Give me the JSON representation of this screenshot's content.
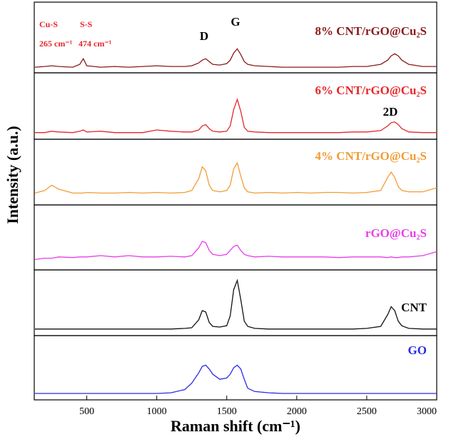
{
  "chart_data": {
    "type": "line",
    "xlabel": "Raman shift (cm⁻¹)",
    "ylabel": "Intensity (a.u.)",
    "xlim": [
      125,
      3000
    ],
    "xticks": [
      500,
      1000,
      1500,
      2000,
      2500,
      3000
    ],
    "ylim": [
      0,
      100
    ],
    "annotations": [
      "D",
      "G",
      "2D",
      "Cu-S",
      "S-S",
      "265 cm⁻¹",
      "474 cm⁻¹"
    ],
    "x": [
      130,
      200,
      250,
      300,
      400,
      450,
      475,
      500,
      600,
      700,
      800,
      900,
      1000,
      1100,
      1200,
      1250,
      1300,
      1325,
      1350,
      1375,
      1400,
      1450,
      1500,
      1525,
      1550,
      1575,
      1600,
      1625,
      1650,
      1700,
      1800,
      1900,
      2000,
      2100,
      2200,
      2300,
      2400,
      2500,
      2600,
      2650,
      2675,
      2700,
      2725,
      2750,
      2800,
      2900,
      3000
    ],
    "series": [
      {
        "name": "8% CNT/rGO@Cu₂S",
        "color": "#8b1a1a",
        "values": [
          8,
          9,
          10,
          9,
          8,
          12,
          20,
          10,
          8,
          9,
          8,
          9,
          10,
          9,
          9,
          10,
          14,
          18,
          20,
          16,
          12,
          11,
          13,
          18,
          28,
          34,
          26,
          16,
          12,
          10,
          9,
          8,
          8,
          8,
          8,
          8,
          9,
          9,
          12,
          18,
          24,
          27,
          24,
          18,
          12,
          9,
          9
        ]
      },
      {
        "name": "6% CNT/rGO@Cu₂S",
        "color": "#e8262a",
        "values": [
          10,
          10,
          12,
          11,
          10,
          12,
          14,
          11,
          12,
          10,
          10,
          10,
          14,
          12,
          11,
          11,
          14,
          20,
          22,
          16,
          12,
          11,
          12,
          20,
          45,
          60,
          42,
          18,
          12,
          11,
          10,
          10,
          10,
          10,
          10,
          10,
          11,
          11,
          13,
          20,
          25,
          26,
          22,
          16,
          11,
          10,
          10
        ]
      },
      {
        "name": "4% CNT/rGO@Cu₂S",
        "color": "#f39c34",
        "values": [
          18,
          22,
          30,
          24,
          18,
          18,
          18,
          19,
          18,
          18,
          19,
          18,
          19,
          18,
          19,
          22,
          40,
          58,
          52,
          30,
          22,
          20,
          22,
          30,
          55,
          64,
          44,
          26,
          20,
          18,
          19,
          18,
          19,
          18,
          19,
          19,
          18,
          19,
          22,
          42,
          50,
          42,
          28,
          22,
          20,
          20,
          26
        ]
      },
      {
        "name": "rGO@Cu₂S",
        "color": "#e83ee8",
        "values": [
          16,
          18,
          18,
          20,
          19,
          20,
          20,
          20,
          22,
          20,
          22,
          20,
          20,
          21,
          20,
          22,
          34,
          44,
          42,
          30,
          24,
          22,
          24,
          30,
          36,
          38,
          30,
          24,
          22,
          20,
          21,
          20,
          20,
          20,
          20,
          19,
          20,
          20,
          20,
          19,
          20,
          19,
          19,
          20,
          20,
          22,
          28
        ]
      },
      {
        "name": "CNT",
        "color": "#111111",
        "values": [
          10,
          10,
          10,
          10,
          10,
          10,
          10,
          10,
          10,
          10,
          10,
          10,
          10,
          10,
          11,
          12,
          24,
          38,
          36,
          20,
          14,
          13,
          15,
          30,
          70,
          84,
          55,
          22,
          14,
          11,
          10,
          10,
          10,
          10,
          10,
          10,
          10,
          11,
          14,
          32,
          44,
          38,
          22,
          15,
          11,
          10,
          10
        ]
      },
      {
        "name": "GO",
        "color": "#2a2ae8",
        "values": [
          10,
          10,
          10,
          10,
          10,
          10,
          10,
          10,
          10,
          10,
          10,
          10,
          10,
          11,
          16,
          26,
          42,
          52,
          54,
          48,
          40,
          32,
          34,
          40,
          50,
          54,
          48,
          32,
          18,
          13,
          11,
          10,
          10,
          10,
          10,
          10,
          10,
          10,
          10,
          10,
          10,
          10,
          10,
          10,
          10,
          10,
          10
        ]
      }
    ]
  }
}
